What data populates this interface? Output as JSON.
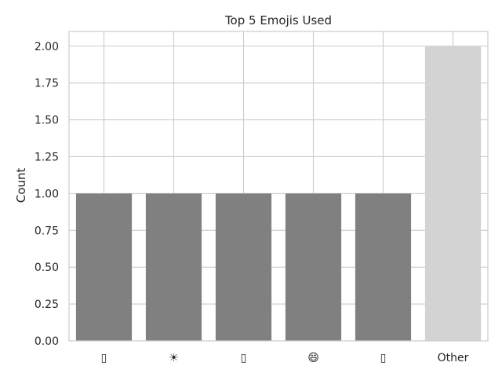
{
  "chart_data": {
    "type": "bar",
    "title": "Top 5 Emojis Used",
    "xlabel": "",
    "ylabel": "Count",
    "categories": [
      "▯",
      "☀",
      "▯",
      "😄",
      "▯",
      "Other"
    ],
    "values": [
      1,
      1,
      1,
      1,
      1,
      2
    ],
    "ylim": [
      0,
      2.1
    ],
    "yticks": [
      "0.00",
      "0.25",
      "0.50",
      "0.75",
      "1.00",
      "1.25",
      "1.50",
      "1.75",
      "2.00"
    ],
    "grid": true,
    "bar_colors": [
      "#808080",
      "#808080",
      "#808080",
      "#808080",
      "#808080",
      "#d3d3d3"
    ],
    "axis_color": "#cccccc",
    "grid_color": "#cccccc",
    "text_color": "#262626"
  }
}
